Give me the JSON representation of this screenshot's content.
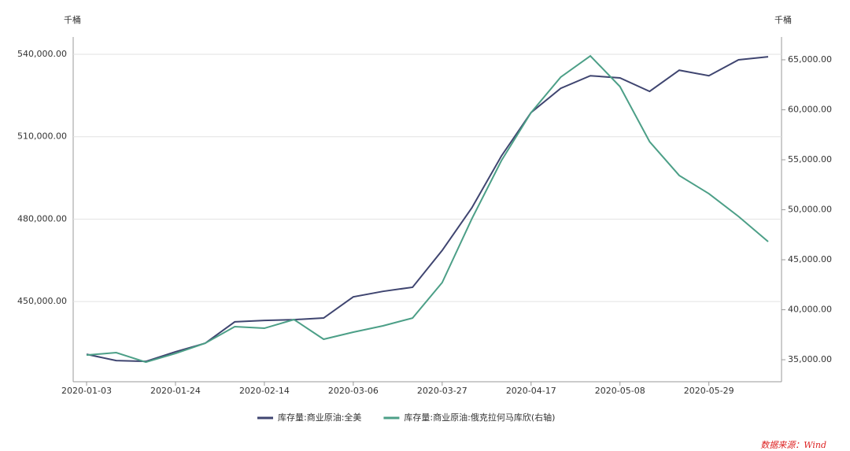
{
  "chart_data": {
    "type": "line",
    "y_unit": "千桶",
    "y2_unit": "千桶",
    "source": "数据来源：Wind",
    "categories": [
      "2020-01-03",
      null,
      null,
      "2020-01-24",
      null,
      null,
      "2020-02-14",
      null,
      null,
      "2020-03-06",
      null,
      null,
      "2020-03-27",
      null,
      null,
      "2020-04-17",
      null,
      null,
      "2020-05-08",
      null,
      null,
      "2020-05-29",
      null,
      null
    ],
    "series": [
      {
        "name": "库存量:商业原油:全美",
        "color": "#3f4570",
        "values": [
          430800,
          428500,
          428200,
          431700,
          434800,
          442600,
          443100,
          443400,
          444000,
          451700,
          453700,
          455200,
          468600,
          484100,
          503000,
          518800,
          527600,
          532200,
          531400,
          526500,
          534200,
          532200,
          538000,
          539100
        ]
      },
      {
        "name": "库存量:商业原油:俄克拉何马库欣(右轴)",
        "color": "#4c9f87",
        "axis": "y2",
        "values": [
          35470,
          35710,
          34760,
          35630,
          36650,
          38310,
          38150,
          39020,
          37050,
          37760,
          38390,
          39170,
          42720,
          49090,
          54920,
          59720,
          63270,
          65390,
          62320,
          56810,
          53430,
          51610,
          49330,
          46810
        ]
      }
    ],
    "ylim": [
      420800,
      546300
    ],
    "yticks": [
      {
        "value": 450000,
        "label": "450,000.00"
      },
      {
        "value": 480000,
        "label": "480,000.00"
      },
      {
        "value": 510000,
        "label": "510,000.00"
      },
      {
        "value": 540000,
        "label": "540,000.00"
      }
    ],
    "y2lim": [
      32800,
      67280
    ],
    "y2ticks": [
      {
        "value": 35000,
        "label": "35,000.00"
      },
      {
        "value": 40000,
        "label": "40,000.00"
      },
      {
        "value": 45000,
        "label": "45,000.00"
      },
      {
        "value": 50000,
        "label": "50,000.00"
      },
      {
        "value": 55000,
        "label": "55,000.00"
      },
      {
        "value": 60000,
        "label": "60,000.00"
      },
      {
        "value": 65000,
        "label": "65,000.00"
      }
    ],
    "grid": true
  }
}
